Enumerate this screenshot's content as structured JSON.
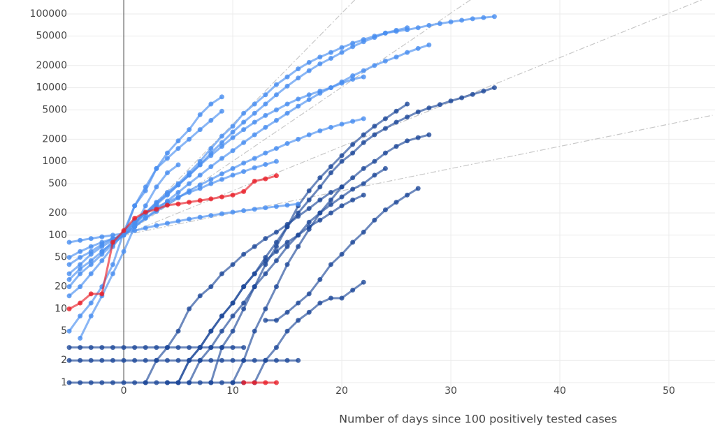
{
  "chart_data": {
    "type": "line",
    "x_label": "Number of days since 100 positively tested cases",
    "xlim": [
      -5.58,
      54.23
    ],
    "xticks": [
      0,
      10,
      20,
      30,
      40,
      50
    ],
    "ylim": [
      0.77,
      154500
    ],
    "log_y": true,
    "yticks": [
      1,
      2,
      5,
      10,
      20,
      50,
      100,
      200,
      500,
      1000,
      2000,
      5000,
      10000,
      20000,
      50000,
      100000
    ],
    "grid": true,
    "series": [
      {
        "color": "#c8c8c8",
        "dash": true,
        "x": [
          0,
          22
        ],
        "values": [
          100,
          204800
        ]
      },
      {
        "color": "#c8c8c8",
        "dash": true,
        "x": [
          0,
          33
        ],
        "values": [
          100,
          204800
        ]
      },
      {
        "color": "#c8c8c8",
        "dash": true,
        "x": [
          0,
          54
        ],
        "values": [
          100,
          178000
        ]
      },
      {
        "color": "#c8c8c8",
        "dash": true,
        "x": [
          0,
          54
        ],
        "values": [
          100,
          4222
        ]
      },
      {
        "color": "#1f4a9a",
        "x": [
          5,
          6,
          7,
          8,
          9,
          10,
          11,
          12,
          13,
          14,
          15,
          16,
          17,
          18,
          19,
          20,
          21,
          22,
          23,
          24,
          25,
          26,
          27,
          28,
          29,
          30,
          31,
          32,
          33,
          34
        ],
        "values": [
          1,
          2,
          3,
          5,
          8,
          12,
          20,
          30,
          50,
          80,
          130,
          200,
          300,
          450,
          700,
          1000,
          1300,
          1800,
          2300,
          2800,
          3400,
          4000,
          4700,
          5300,
          5900,
          6600,
          7300,
          8100,
          9000,
          10000
        ]
      },
      {
        "color": "#1f4a9a",
        "x": [
          8,
          9,
          10,
          11,
          12,
          13,
          14,
          15,
          16,
          17,
          18,
          19,
          20,
          21,
          22,
          23,
          24,
          25,
          26
        ],
        "values": [
          1,
          3,
          5,
          10,
          20,
          40,
          70,
          130,
          250,
          400,
          600,
          850,
          1200,
          1700,
          2300,
          3000,
          3800,
          4800,
          6000
        ]
      },
      {
        "color": "#1f4a9a",
        "x": [
          10,
          11,
          12,
          13,
          14,
          15,
          16,
          17,
          18,
          19,
          20,
          21,
          22,
          23,
          24,
          25,
          26,
          27,
          28
        ],
        "values": [
          1,
          2,
          5,
          10,
          20,
          40,
          70,
          120,
          200,
          300,
          450,
          600,
          800,
          1000,
          1300,
          1600,
          1900,
          2100,
          2300
        ]
      },
      {
        "color": "#1f4a9a",
        "x": [
          13,
          14,
          15,
          16,
          17,
          18,
          19,
          20,
          21,
          22,
          23,
          24,
          25,
          26,
          27
        ],
        "values": [
          7,
          7,
          9,
          12,
          16,
          25,
          40,
          55,
          80,
          110,
          160,
          220,
          280,
          350,
          430
        ]
      },
      {
        "color": "#1f4a9a",
        "x": [
          6,
          7,
          8,
          9,
          10,
          11,
          12,
          13,
          14,
          15,
          16,
          17,
          18,
          19,
          20,
          21,
          22,
          23,
          24
        ],
        "values": [
          1,
          2,
          3,
          5,
          8,
          12,
          20,
          30,
          45,
          70,
          100,
          150,
          200,
          260,
          330,
          420,
          500,
          650,
          800
        ]
      },
      {
        "color": "#1f4a9a",
        "x": [
          12,
          13,
          14,
          15,
          16,
          17,
          18,
          19,
          20,
          21,
          22
        ],
        "values": [
          1,
          2,
          3,
          5,
          7,
          9,
          12,
          14,
          14,
          18,
          23
        ]
      },
      {
        "color": "#1f4a9a",
        "x": [
          -5,
          -4,
          -3,
          -2,
          -1,
          0,
          1,
          2,
          3,
          4,
          5,
          6,
          7,
          8,
          9,
          10,
          11
        ],
        "values": [
          3,
          3,
          3,
          3,
          3,
          3,
          3,
          3,
          3,
          3,
          3,
          3,
          3,
          3,
          3,
          3,
          3
        ]
      },
      {
        "color": "#1f4a9a",
        "x": [
          -5,
          -4,
          -3,
          -2,
          -1,
          0,
          1,
          2,
          3,
          4,
          5,
          6,
          7,
          8,
          9,
          10,
          11
        ],
        "values": [
          1,
          1,
          1,
          1,
          1,
          1,
          1,
          1,
          1,
          1,
          1,
          1,
          1,
          1,
          1,
          1,
          1
        ]
      },
      {
        "color": "#1f4a9a",
        "x": [
          2,
          3,
          4,
          5,
          6,
          7,
          8,
          9,
          10,
          11,
          12,
          13,
          14,
          15,
          16,
          17,
          18,
          19,
          20
        ],
        "values": [
          1,
          2,
          3,
          5,
          10,
          15,
          20,
          30,
          40,
          55,
          70,
          90,
          110,
          140,
          180,
          230,
          300,
          380,
          450
        ]
      },
      {
        "color": "#1f4a9a",
        "x": [
          4,
          5,
          6,
          7,
          8,
          9,
          10,
          11,
          12,
          13,
          14,
          15,
          16,
          17,
          18,
          19,
          20,
          21,
          22
        ],
        "values": [
          1,
          1,
          2,
          3,
          5,
          8,
          12,
          20,
          30,
          45,
          60,
          80,
          100,
          130,
          160,
          200,
          250,
          300,
          350
        ]
      },
      {
        "color": "#1f4a9a",
        "x": [
          -5,
          -4,
          -3,
          -2,
          -1,
          0,
          1,
          2,
          3,
          4,
          5,
          6,
          7,
          8,
          9,
          10,
          11,
          12,
          13,
          14,
          15,
          16
        ],
        "values": [
          2,
          2,
          2,
          2,
          2,
          2,
          2,
          2,
          2,
          2,
          2,
          2,
          2,
          2,
          2,
          2,
          2,
          2,
          2,
          2,
          2,
          2
        ]
      },
      {
        "color": "#4a8ff0",
        "x": [
          -2,
          -1,
          0,
          1,
          2,
          3,
          4,
          5,
          6,
          7,
          8,
          9
        ],
        "values": [
          60,
          80,
          100,
          250,
          400,
          800,
          1300,
          1900,
          2700,
          4300,
          6000,
          7500
        ]
      },
      {
        "color": "#4a8ff0",
        "x": [
          -5,
          -4,
          -3,
          -2,
          -1,
          0,
          1,
          2,
          3,
          4,
          5,
          6,
          7,
          8,
          9,
          10,
          11,
          12,
          13,
          14,
          15,
          16,
          17,
          18,
          19,
          20,
          21,
          22,
          23,
          24,
          25,
          26,
          27,
          28,
          29,
          30,
          31,
          32,
          33,
          34
        ],
        "values": [
          40,
          50,
          60,
          75,
          90,
          100,
          150,
          200,
          280,
          380,
          500,
          700,
          1000,
          1500,
          2200,
          3000,
          4500,
          6000,
          8000,
          11000,
          14000,
          18000,
          22000,
          26000,
          30000,
          35000,
          40000,
          45000,
          50000,
          55000,
          58000,
          61000,
          65000,
          70000,
          74000,
          78000,
          82000,
          86000,
          89000,
          92000
        ]
      },
      {
        "color": "#4a8ff0",
        "x": [
          -5,
          -4,
          -3,
          -2,
          -1,
          0,
          1,
          2,
          3,
          4,
          5,
          6,
          7,
          8,
          9,
          10,
          11,
          12,
          13,
          14,
          15,
          16,
          17,
          18,
          19,
          20,
          21,
          22,
          23,
          24,
          25,
          26
        ],
        "values": [
          30,
          40,
          55,
          70,
          85,
          110,
          150,
          200,
          270,
          360,
          480,
          650,
          900,
          1300,
          1800,
          2500,
          3400,
          4500,
          6000,
          8000,
          10500,
          13500,
          17000,
          21000,
          25000,
          30000,
          36000,
          42000,
          48000,
          55000,
          60000,
          65000
        ]
      },
      {
        "color": "#4a8ff0",
        "x": [
          -5,
          -4,
          -3,
          -2,
          -1,
          0,
          1,
          2,
          3,
          4,
          5,
          6,
          7,
          8,
          9,
          10,
          11,
          12,
          13,
          14,
          15,
          16,
          17,
          18,
          19,
          20,
          21,
          22,
          23,
          24,
          25,
          26,
          27,
          28
        ],
        "values": [
          20,
          30,
          40,
          55,
          75,
          100,
          130,
          170,
          220,
          290,
          380,
          500,
          650,
          850,
          1100,
          1400,
          1800,
          2300,
          2900,
          3600,
          4500,
          5600,
          6900,
          8400,
          10000,
          12000,
          14500,
          17000,
          20000,
          23000,
          26000,
          30000,
          34000,
          38000
        ]
      },
      {
        "color": "#4a8ff0",
        "x": [
          -5,
          -4,
          -3,
          -2,
          -1,
          0,
          1,
          2,
          3,
          4,
          5,
          6,
          7,
          8,
          9,
          10,
          11,
          12,
          13,
          14,
          15,
          16,
          17,
          18,
          19,
          20,
          21,
          22
        ],
        "values": [
          50,
          60,
          70,
          80,
          90,
          100,
          140,
          190,
          260,
          350,
          480,
          650,
          900,
          1200,
          1600,
          2100,
          2700,
          3400,
          4200,
          5000,
          6000,
          7000,
          8000,
          9000,
          10000,
          11500,
          13000,
          14000
        ]
      },
      {
        "color": "#4a8ff0",
        "x": [
          -5,
          -4,
          -3,
          -2,
          -1,
          0,
          1,
          2,
          3,
          4,
          5,
          6,
          7,
          8,
          9,
          10,
          11,
          12,
          13,
          14,
          15,
          16,
          17,
          18,
          19,
          20,
          21,
          22
        ],
        "values": [
          25,
          35,
          45,
          60,
          80,
          100,
          130,
          170,
          210,
          260,
          320,
          400,
          480,
          570,
          680,
          800,
          950,
          1100,
          1300,
          1500,
          1750,
          2000,
          2300,
          2600,
          2900,
          3200,
          3500,
          3800
        ]
      },
      {
        "color": "#4a8ff0",
        "x": [
          -5,
          -4,
          -3,
          -2,
          -1,
          0,
          1,
          2,
          3,
          4,
          5,
          6,
          7,
          8,
          9,
          10,
          11,
          12,
          13,
          14
        ],
        "values": [
          15,
          20,
          30,
          45,
          70,
          110,
          160,
          200,
          240,
          280,
          330,
          380,
          430,
          500,
          570,
          650,
          730,
          820,
          910,
          1000
        ]
      },
      {
        "color": "#4a8ff0",
        "x": [
          -5,
          -4,
          -3,
          -2,
          -1,
          0,
          1,
          2,
          3,
          4,
          5,
          6,
          7,
          8,
          9,
          10,
          11,
          12,
          13,
          14,
          15,
          16
        ],
        "values": [
          80,
          85,
          90,
          95,
          100,
          105,
          115,
          125,
          135,
          145,
          155,
          165,
          175,
          185,
          195,
          205,
          215,
          225,
          235,
          245,
          255,
          265
        ]
      },
      {
        "color": "#4a8ff0",
        "x": [
          -4,
          -3,
          -2,
          -1,
          0,
          1,
          2,
          3,
          4,
          5
        ],
        "values": [
          4,
          8,
          15,
          30,
          60,
          130,
          250,
          450,
          700,
          900
        ]
      },
      {
        "color": "#4a8ff0",
        "x": [
          -5,
          -4,
          -3,
          -2,
          -1,
          0,
          1,
          2,
          3,
          4,
          5,
          6,
          7,
          8,
          9
        ],
        "values": [
          5,
          8,
          12,
          20,
          40,
          110,
          250,
          450,
          800,
          1100,
          1500,
          2000,
          2700,
          3600,
          4800
        ]
      },
      {
        "color": "#e8202a",
        "x": [
          -5,
          -4,
          -3,
          -2,
          -1,
          0,
          1,
          2,
          3,
          4,
          5,
          6,
          7,
          8,
          9,
          10,
          11,
          12,
          13,
          14
        ],
        "values": [
          10,
          12,
          16,
          16,
          80,
          115,
          170,
          205,
          225,
          255,
          265,
          280,
          295,
          310,
          330,
          350,
          390,
          540,
          580,
          640
        ]
      },
      {
        "color": "#e8202a",
        "x": [
          11,
          12,
          13,
          14
        ],
        "values": [
          1,
          1,
          1,
          1
        ]
      }
    ]
  }
}
